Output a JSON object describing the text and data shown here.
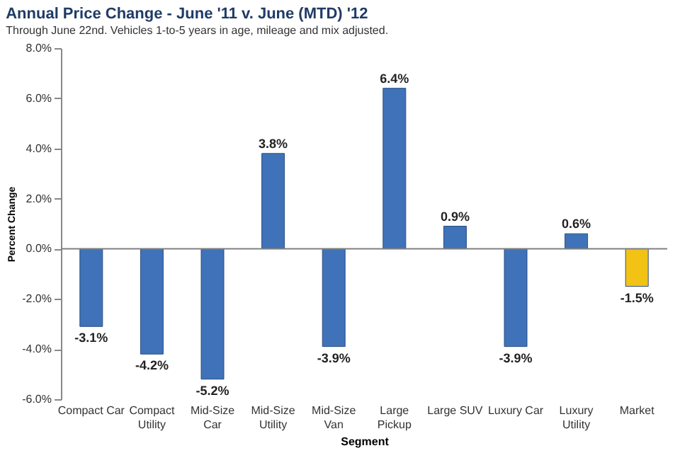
{
  "chart_data": {
    "type": "bar",
    "title": "Annual Price Change - June '11 v. June (MTD) '12",
    "subtitle": "Through June 22nd.  Vehicles 1-to-5 years in age, mileage and mix adjusted.",
    "xlabel": "Segment",
    "ylabel": "Percent Change",
    "categories": [
      "Compact Car",
      "Compact Utility",
      "Mid-Size Car",
      "Mid-Size Utility",
      "Mid-Size Van",
      "Large Pickup",
      "Large SUV",
      "Luxury Car",
      "Luxury Utility",
      "Market"
    ],
    "values": [
      -3.1,
      -4.2,
      -5.2,
      3.8,
      -3.9,
      6.4,
      0.9,
      -3.9,
      0.6,
      -1.5
    ],
    "value_labels": [
      "-3.1%",
      "-4.2%",
      "-5.2%",
      "3.8%",
      "-3.9%",
      "6.4%",
      "0.9%",
      "-3.9%",
      "0.6%",
      "-1.5%"
    ],
    "colors": [
      "#3f72b8",
      "#3f72b8",
      "#3f72b8",
      "#3f72b8",
      "#3f72b8",
      "#3f72b8",
      "#3f72b8",
      "#3f72b8",
      "#3f72b8",
      "#f2c314"
    ],
    "ylim": [
      -6,
      8
    ],
    "yticks": [
      {
        "value": -6,
        "label": "-6.0%"
      },
      {
        "value": -4,
        "label": "-4.0%"
      },
      {
        "value": -2,
        "label": "-2.0%"
      },
      {
        "value": 0,
        "label": "0.0%"
      },
      {
        "value": 2,
        "label": "2.0%"
      },
      {
        "value": 4,
        "label": "4.0%"
      },
      {
        "value": 6,
        "label": "6.0%"
      },
      {
        "value": 8,
        "label": "8.0%"
      }
    ],
    "ref_lines": [
      {
        "axis": "y",
        "value": 0,
        "color": "#808080"
      }
    ],
    "grid": false
  }
}
